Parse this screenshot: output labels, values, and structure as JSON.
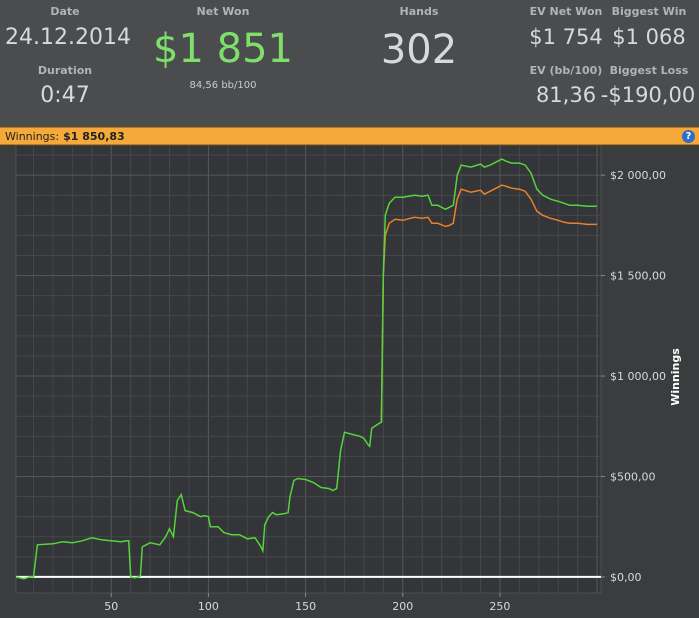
{
  "stats": {
    "date_label": "Date",
    "date_value": "24.12.2014",
    "duration_label": "Duration",
    "duration_value": "0:47",
    "net_won_label": "Net Won",
    "net_won_value": "$1 851",
    "net_won_sub": "84,56 bb/100",
    "hands_label": "Hands",
    "hands_value": "302",
    "ev_net_won_label": "EV Net Won",
    "ev_net_won_value": "$1 754",
    "biggest_win_label": "Biggest Win",
    "biggest_win_value": "$1 068",
    "ev_bb_label": "EV (bb/100)",
    "ev_bb_value": "81,36",
    "biggest_loss_label": "Biggest Loss",
    "biggest_loss_value": "-$190,00"
  },
  "winnings_bar": {
    "label": "Winnings:",
    "value": "$1 850,83",
    "help_icon": "help-icon"
  },
  "colors": {
    "net_won": "#7ee06a",
    "winnings_line": "#55d43c",
    "ev_line": "#e8822e",
    "zero_line": "#ffffff",
    "accent_bar": "#f4a93a"
  },
  "chart_data": {
    "type": "line",
    "ylabel": "Winnings",
    "xlabel": "",
    "xlim": [
      1,
      302
    ],
    "ylim": [
      -80,
      2150
    ],
    "x_ticks": [
      50,
      100,
      150,
      200,
      250
    ],
    "y_ticks": [
      {
        "value": 0,
        "label": "$0,00"
      },
      {
        "value": 500,
        "label": "$500,00"
      },
      {
        "value": 1000,
        "label": "$1 000,00"
      },
      {
        "value": 1500,
        "label": "$1 500,00"
      },
      {
        "value": 2000,
        "label": "$2 000,00"
      }
    ],
    "grid": true,
    "series": [
      {
        "key": "winnings",
        "points": [
          [
            1,
            0
          ],
          [
            5,
            -10
          ],
          [
            8,
            0
          ],
          [
            10,
            0
          ],
          [
            12,
            160
          ],
          [
            20,
            165
          ],
          [
            25,
            175
          ],
          [
            30,
            170
          ],
          [
            35,
            180
          ],
          [
            40,
            195
          ],
          [
            45,
            185
          ],
          [
            50,
            180
          ],
          [
            55,
            175
          ],
          [
            58,
            180
          ],
          [
            59,
            180
          ],
          [
            60,
            0
          ],
          [
            62,
            -5
          ],
          [
            64,
            0
          ],
          [
            65,
            5
          ],
          [
            66,
            150
          ],
          [
            70,
            170
          ],
          [
            75,
            160
          ],
          [
            78,
            200
          ],
          [
            80,
            240
          ],
          [
            82,
            200
          ],
          [
            84,
            380
          ],
          [
            86,
            410
          ],
          [
            88,
            330
          ],
          [
            92,
            320
          ],
          [
            96,
            300
          ],
          [
            98,
            305
          ],
          [
            100,
            300
          ],
          [
            101,
            250
          ],
          [
            105,
            250
          ],
          [
            108,
            220
          ],
          [
            112,
            210
          ],
          [
            116,
            210
          ],
          [
            120,
            190
          ],
          [
            124,
            195
          ],
          [
            127,
            150
          ],
          [
            128,
            130
          ],
          [
            129,
            260
          ],
          [
            131,
            300
          ],
          [
            133,
            320
          ],
          [
            135,
            310
          ],
          [
            139,
            315
          ],
          [
            141,
            320
          ],
          [
            142,
            400
          ],
          [
            144,
            480
          ],
          [
            146,
            490
          ],
          [
            150,
            485
          ],
          [
            154,
            470
          ],
          [
            158,
            445
          ],
          [
            162,
            440
          ],
          [
            164,
            430
          ],
          [
            166,
            440
          ],
          [
            168,
            630
          ],
          [
            170,
            720
          ],
          [
            172,
            715
          ],
          [
            174,
            710
          ],
          [
            178,
            700
          ],
          [
            180,
            690
          ],
          [
            182,
            660
          ],
          [
            183,
            650
          ],
          [
            184,
            740
          ],
          [
            188,
            765
          ],
          [
            189,
            770
          ],
          [
            190,
            1500
          ],
          [
            191,
            1800
          ],
          [
            193,
            1860
          ],
          [
            196,
            1890
          ],
          [
            200,
            1890
          ],
          [
            206,
            1900
          ],
          [
            210,
            1895
          ],
          [
            213,
            1900
          ],
          [
            215,
            1850
          ],
          [
            218,
            1850
          ],
          [
            222,
            1830
          ],
          [
            224,
            1840
          ],
          [
            226,
            1850
          ],
          [
            227,
            1920
          ],
          [
            228,
            2000
          ],
          [
            230,
            2050
          ],
          [
            235,
            2040
          ],
          [
            240,
            2055
          ],
          [
            242,
            2040
          ],
          [
            245,
            2050
          ],
          [
            248,
            2065
          ],
          [
            251,
            2080
          ],
          [
            253,
            2070
          ],
          [
            256,
            2060
          ],
          [
            260,
            2060
          ],
          [
            263,
            2050
          ],
          [
            266,
            2010
          ],
          [
            269,
            1930
          ],
          [
            272,
            1900
          ],
          [
            276,
            1880
          ],
          [
            280,
            1870
          ],
          [
            283,
            1860
          ],
          [
            286,
            1850
          ],
          [
            290,
            1850
          ],
          [
            295,
            1845
          ],
          [
            300,
            1845
          ]
        ]
      },
      {
        "key": "ev",
        "points": [
          [
            189,
            770
          ],
          [
            190,
            1500
          ],
          [
            191,
            1700
          ],
          [
            193,
            1760
          ],
          [
            196,
            1780
          ],
          [
            200,
            1775
          ],
          [
            206,
            1790
          ],
          [
            210,
            1785
          ],
          [
            213,
            1790
          ],
          [
            215,
            1760
          ],
          [
            218,
            1760
          ],
          [
            222,
            1745
          ],
          [
            224,
            1750
          ],
          [
            226,
            1760
          ],
          [
            227,
            1820
          ],
          [
            228,
            1880
          ],
          [
            230,
            1930
          ],
          [
            235,
            1915
          ],
          [
            240,
            1925
          ],
          [
            242,
            1905
          ],
          [
            245,
            1920
          ],
          [
            248,
            1935
          ],
          [
            251,
            1950
          ],
          [
            253,
            1945
          ],
          [
            256,
            1935
          ],
          [
            260,
            1930
          ],
          [
            263,
            1920
          ],
          [
            266,
            1880
          ],
          [
            269,
            1820
          ],
          [
            272,
            1800
          ],
          [
            276,
            1785
          ],
          [
            280,
            1775
          ],
          [
            283,
            1765
          ],
          [
            286,
            1760
          ],
          [
            290,
            1760
          ],
          [
            295,
            1755
          ],
          [
            300,
            1755
          ]
        ]
      }
    ]
  }
}
